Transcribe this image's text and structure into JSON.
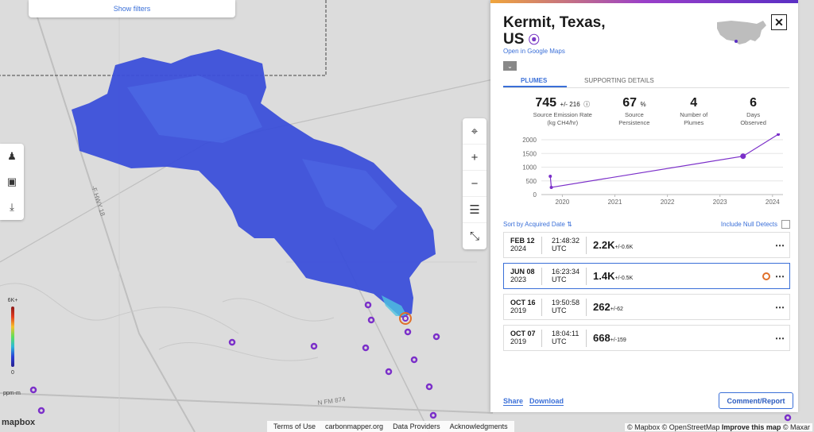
{
  "filters": {
    "label": "Show filters"
  },
  "map": {
    "road_labels": [
      "-F HWY 18",
      "N FM 874"
    ],
    "legend": {
      "max": "6K+",
      "min": "0",
      "unit": "ppm-m"
    },
    "logo": "mapbox",
    "footer_links": [
      "Terms of Use",
      "carbonmapper.org",
      "Data Providers",
      "Acknowledgments"
    ],
    "attribution": {
      "mapbox": "© Mapbox",
      "osm": "© OpenStreetMap",
      "improve": "Improve this map",
      "maxar": "© Maxar"
    },
    "left_tools": [
      "person-icon",
      "search-image-icon",
      "download-icon"
    ],
    "right_tools": [
      "locate-icon",
      "zoom-in-icon",
      "zoom-out-icon",
      "layers-icon",
      "measure-icon"
    ]
  },
  "panel": {
    "title_line1": "Kermit, Texas,",
    "title_line2": "US",
    "google_maps": "Open in Google Maps",
    "close": "✕",
    "tabs": [
      {
        "label": "PLUMES",
        "active": true
      },
      {
        "label": "SUPPORTING DETAILS",
        "active": false
      }
    ],
    "stats": [
      {
        "value": "745",
        "suffix": "+/- 216",
        "label1": "Source Emission Rate",
        "label2": "(kg CH4/hr)"
      },
      {
        "value": "67",
        "suffix": "%",
        "label1": "Source",
        "label2": "Persistence"
      },
      {
        "value": "4",
        "suffix": "",
        "label1": "Number of",
        "label2": "Plumes"
      },
      {
        "value": "6",
        "suffix": "",
        "label1": "Days",
        "label2": "Observed"
      }
    ],
    "sort": {
      "prefix": "Sort by",
      "field": "Acquired Date"
    },
    "null_detects": "Include Null Detects",
    "rows": [
      {
        "date": "FEB 12",
        "year": "2024",
        "time": "21:48:32",
        "tz": "UTC",
        "value": "2.2K",
        "err": "+/-0.6K",
        "selected": false
      },
      {
        "date": "JUN 08",
        "year": "2023",
        "time": "16:23:34",
        "tz": "UTC",
        "value": "1.4K",
        "err": "+/-0.5K",
        "selected": true
      },
      {
        "date": "OCT 16",
        "year": "2019",
        "time": "19:50:58",
        "tz": "UTC",
        "value": "262",
        "err": "+/-62",
        "selected": false
      },
      {
        "date": "OCT 07",
        "year": "2019",
        "time": "18:04:11",
        "tz": "UTC",
        "value": "668",
        "err": "+/-159",
        "selected": false
      }
    ],
    "share": "Share",
    "download": "Download",
    "comment": "Comment/Report"
  },
  "chart_data": {
    "type": "line",
    "title": "",
    "xlabel": "",
    "ylabel": "",
    "x_ticks": [
      "2020",
      "2021",
      "2022",
      "2023",
      "2024"
    ],
    "y_ticks": [
      "0",
      "500",
      "1000",
      "1500",
      "2000"
    ],
    "ylim": [
      0,
      2000
    ],
    "xlim": [
      2019.6,
      2024.2
    ],
    "points": [
      {
        "x": 2019.77,
        "y": 668
      },
      {
        "x": 2019.79,
        "y": 262
      },
      {
        "x": 2023.44,
        "y": 1400
      },
      {
        "x": 2024.11,
        "y": 2200
      }
    ],
    "color": "#7b2fc9"
  }
}
